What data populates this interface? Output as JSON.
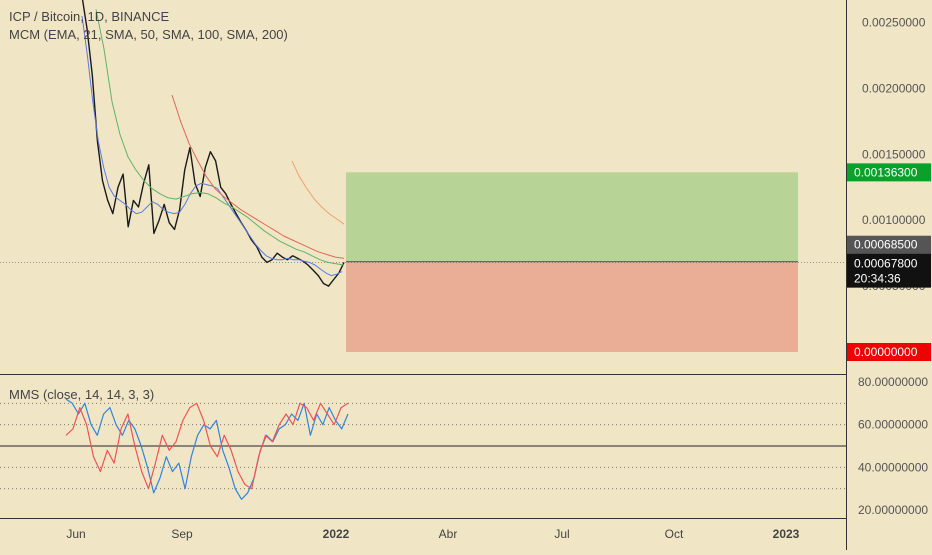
{
  "header": {
    "title": "ICP / Bitcoin, 1D, BINANCE",
    "ma_indicator": "MCM (EMA, 21, SMA, 50, SMA, 100, SMA, 200)",
    "oscillator": "MMS (close, 14, 14, 3, 3)"
  },
  "colors": {
    "background": "#f0e5c5",
    "candles": "#1a1a1a",
    "ema21": "#5b7be0",
    "sma50": "#5fb36b",
    "sma100": "#e0685a",
    "sma200": "#f0a070",
    "profit_zone": "#b8d396",
    "loss_zone": "#eaae96",
    "target_badge": "#0aa02a",
    "stop_badge": "#f00000",
    "current_badge": "#111111",
    "entry_badge": "#555555",
    "osc_line_a": "#2e86de",
    "osc_line_b": "#ee5555"
  },
  "chart_data": [
    {
      "type": "line",
      "title": "ICP / Bitcoin, 1D, BINANCE",
      "y_axis": {
        "ticks": [
          "0.00250000",
          "0.00200000",
          "0.00150000",
          "0.00100000",
          "0.00050000"
        ],
        "tick_values": [
          0.0025,
          0.002,
          0.0015,
          0.001,
          0.0005
        ],
        "range": [
          0.0,
          0.00275
        ]
      },
      "x_axis": {
        "ticks": [
          "Jun",
          "Sep",
          "2022",
          "Abr",
          "Jul",
          "Oct",
          "2023"
        ],
        "bold_ticks": [
          "2022",
          "2023"
        ]
      },
      "series": [
        {
          "key": "close",
          "values": [
            0.0027,
            0.00245,
            0.0021,
            0.0016,
            0.0013,
            0.00115,
            0.00105,
            0.00125,
            0.00135,
            0.00095,
            0.00115,
            0.0011,
            0.00128,
            0.00142,
            0.0009,
            0.001,
            0.00112,
            0.00098,
            0.00093,
            0.00108,
            0.00138,
            0.00155,
            0.00128,
            0.00118,
            0.0014,
            0.00152,
            0.00145,
            0.00125,
            0.0012,
            0.00112,
            0.00105,
            0.00098,
            0.00092,
            0.00085,
            0.0008,
            0.00072,
            0.00068,
            0.0007,
            0.00075,
            0.00072,
            0.0007,
            0.00073,
            0.00071,
            0.00069,
            0.00066,
            0.00062,
            0.00058,
            0.00052,
            0.0005,
            0.00055,
            0.0006,
            0.00068
          ]
        },
        {
          "key": "ema21",
          "values": [
            0.00255,
            0.00225,
            0.0019,
            0.0016,
            0.0014,
            0.00125,
            0.00118,
            0.00115,
            0.00112,
            0.00108,
            0.00105,
            0.00106,
            0.0011,
            0.00114,
            0.00112,
            0.00108,
            0.00106,
            0.00105,
            0.00106,
            0.00112,
            0.0012,
            0.00126,
            0.00128,
            0.00127,
            0.00126,
            0.00124,
            0.00118,
            0.00112,
            0.00106,
            0.001,
            0.00094,
            0.00088,
            0.00082,
            0.00077,
            0.00073,
            0.00071,
            0.0007,
            0.0007,
            0.00071,
            0.0007,
            0.0007,
            0.00069,
            0.00068,
            0.00066,
            0.00063,
            0.0006,
            0.00058,
            0.00059,
            0.00061
          ]
        },
        {
          "key": "sma50",
          "values": [
            0.0026,
            0.0023,
            0.0019,
            0.00165,
            0.00148,
            0.00138,
            0.0013,
            0.00124,
            0.0012,
            0.00117,
            0.00116,
            0.00118,
            0.0012,
            0.00121,
            0.0012,
            0.00117,
            0.00113,
            0.0011,
            0.00106,
            0.00102,
            0.00097,
            0.00092,
            0.00088,
            0.00084,
            0.00081,
            0.00078,
            0.00076,
            0.00073,
            0.0007,
            0.00068,
            0.00067,
            0.00066
          ]
        },
        {
          "key": "sma100",
          "values": [
            0.00195,
            0.00175,
            0.00158,
            0.00145,
            0.00133,
            0.00124,
            0.00118,
            0.00113,
            0.00108,
            0.00104,
            0.001,
            0.00096,
            0.00092,
            0.00088,
            0.00085,
            0.00082,
            0.00079,
            0.00076,
            0.00074,
            0.00072,
            0.00071
          ]
        },
        {
          "key": "sma200",
          "values": [
            0.00145,
            0.00133,
            0.00124,
            0.00116,
            0.0011,
            0.00105,
            0.00101,
            0.00097
          ]
        }
      ],
      "position": {
        "target_price": "0.00136300",
        "entry_price": "0.00068500",
        "current_price": "0.00067800",
        "countdown": "20:34:36",
        "stop_price": "0.00000000",
        "target_value": 0.001363,
        "entry_value": 0.000685,
        "current_value": 0.000678,
        "stop_value": 0.0
      }
    },
    {
      "type": "line",
      "title": "MMS (close, 14, 14, 3, 3)",
      "y_axis": {
        "ticks": [
          "80.00000000",
          "60.00000000",
          "40.00000000",
          "20.00000000"
        ],
        "tick_values": [
          80,
          60,
          40,
          20
        ],
        "range": [
          15,
          90
        ],
        "dotted_levels": [
          70,
          60,
          40,
          30
        ],
        "solid_level": 50
      },
      "series": [
        {
          "key": "line_a",
          "values": [
            72,
            70,
            65,
            70,
            60,
            55,
            65,
            68,
            60,
            55,
            62,
            58,
            50,
            40,
            28,
            35,
            45,
            38,
            42,
            30,
            45,
            55,
            60,
            58,
            62,
            48,
            40,
            30,
            25,
            28,
            35,
            48,
            55,
            52,
            58,
            60,
            65,
            62,
            70,
            55,
            65,
            60,
            68,
            62,
            58,
            65
          ]
        },
        {
          "key": "line_b",
          "values": [
            55,
            58,
            68,
            60,
            45,
            38,
            48,
            42,
            58,
            65,
            50,
            38,
            30,
            42,
            55,
            48,
            52,
            62,
            68,
            70,
            62,
            50,
            45,
            55,
            48,
            38,
            32,
            30,
            45,
            55,
            52,
            60,
            65,
            60,
            70,
            68,
            62,
            70,
            65,
            60,
            68,
            70
          ]
        }
      ]
    }
  ]
}
